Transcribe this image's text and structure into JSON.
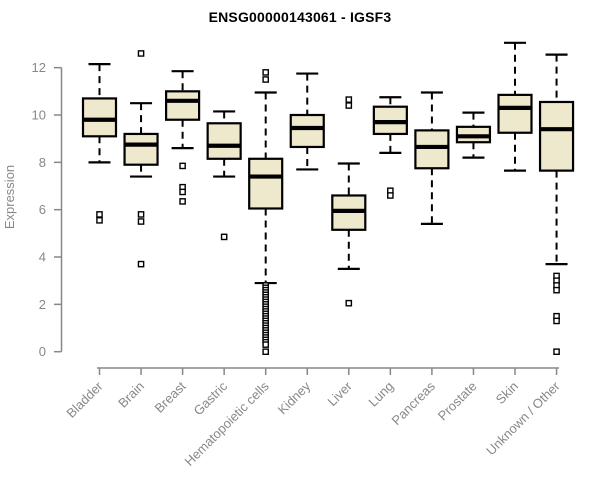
{
  "chart_data": {
    "type": "boxplot",
    "title": "ENSG00000143061 - IGSF3",
    "ylabel": "Expression",
    "xlabel": "",
    "ylim": [
      0,
      12
    ],
    "yticks": [
      0,
      2,
      4,
      6,
      8,
      10,
      12
    ],
    "grid": false,
    "legend": false,
    "colors": {
      "box_fill": "#EEE8CD",
      "box_border": "#000000",
      "median": "#000000",
      "axis": "#888888",
      "title": "#000000",
      "background": "#FFFFFF"
    },
    "boxes": [
      {
        "category": "Bladder",
        "whisker_low": 8.0,
        "q1": 9.1,
        "median": 9.8,
        "q3": 10.7,
        "whisker_high": 12.15,
        "outliers": [
          5.8,
          5.55
        ]
      },
      {
        "category": "Brain",
        "whisker_low": 7.4,
        "q1": 7.9,
        "median": 8.75,
        "q3": 9.2,
        "whisker_high": 10.5,
        "outliers": [
          12.6,
          5.8,
          5.5,
          3.7
        ]
      },
      {
        "category": "Breast",
        "whisker_low": 8.6,
        "q1": 9.8,
        "median": 10.6,
        "q3": 11.0,
        "whisker_high": 11.85,
        "outliers": [
          7.85,
          6.95,
          6.75,
          6.35
        ]
      },
      {
        "category": "Gastric",
        "whisker_low": 7.4,
        "q1": 8.15,
        "median": 8.7,
        "q3": 9.65,
        "whisker_high": 10.15,
        "outliers": [
          4.85
        ]
      },
      {
        "category": "Hematopoietic cells",
        "whisker_low": 2.9,
        "q1": 6.05,
        "median": 7.4,
        "q3": 8.15,
        "whisker_high": 10.95,
        "outliers": [
          11.8,
          11.5,
          2.8,
          2.7,
          2.6,
          2.5,
          2.4,
          2.3,
          2.2,
          2.1,
          2.0,
          1.9,
          1.8,
          1.7,
          1.6,
          1.5,
          1.4,
          1.3,
          1.2,
          1.1,
          1.0,
          0.9,
          0.8,
          0.7,
          0.6,
          0.5,
          0.4,
          0.3,
          0.0
        ]
      },
      {
        "category": "Kidney",
        "whisker_low": 7.7,
        "q1": 8.65,
        "median": 9.45,
        "q3": 10.0,
        "whisker_high": 11.75,
        "outliers": []
      },
      {
        "category": "Liver",
        "whisker_low": 3.5,
        "q1": 5.15,
        "median": 5.95,
        "q3": 6.6,
        "whisker_high": 7.95,
        "outliers": [
          10.65,
          10.4,
          2.05
        ]
      },
      {
        "category": "Lung",
        "whisker_low": 8.4,
        "q1": 9.2,
        "median": 9.7,
        "q3": 10.35,
        "whisker_high": 10.75,
        "outliers": [
          6.8,
          6.6
        ]
      },
      {
        "category": "Pancreas",
        "whisker_low": 5.4,
        "q1": 7.75,
        "median": 8.65,
        "q3": 9.35,
        "whisker_high": 10.95,
        "outliers": []
      },
      {
        "category": "Prostate",
        "whisker_low": 8.2,
        "q1": 8.85,
        "median": 9.1,
        "q3": 9.5,
        "whisker_high": 10.1,
        "outliers": []
      },
      {
        "category": "Skin",
        "whisker_low": 7.65,
        "q1": 9.25,
        "median": 10.3,
        "q3": 10.85,
        "whisker_high": 13.05,
        "outliers": []
      },
      {
        "category": "Unknown / Other",
        "whisker_low": 3.7,
        "q1": 7.65,
        "median": 9.4,
        "q3": 10.55,
        "whisker_high": 12.55,
        "outliers": [
          3.2,
          3.0,
          2.8,
          2.6,
          1.5,
          1.3,
          0.0
        ]
      }
    ]
  }
}
